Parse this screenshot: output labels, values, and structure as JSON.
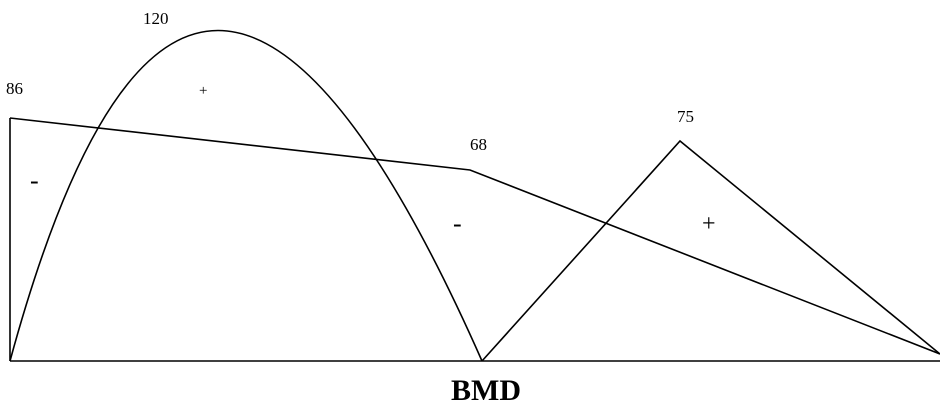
{
  "title": "BMD",
  "value_labels": {
    "v86": "86",
    "v120": "120",
    "v68": "68",
    "v75": "75"
  },
  "sign_labels": {
    "left_minus": "-",
    "top_plus": "+",
    "center_minus": "-",
    "right_plus": "+"
  },
  "colors": {
    "stroke": "#000000",
    "background": "#ffffff"
  }
}
